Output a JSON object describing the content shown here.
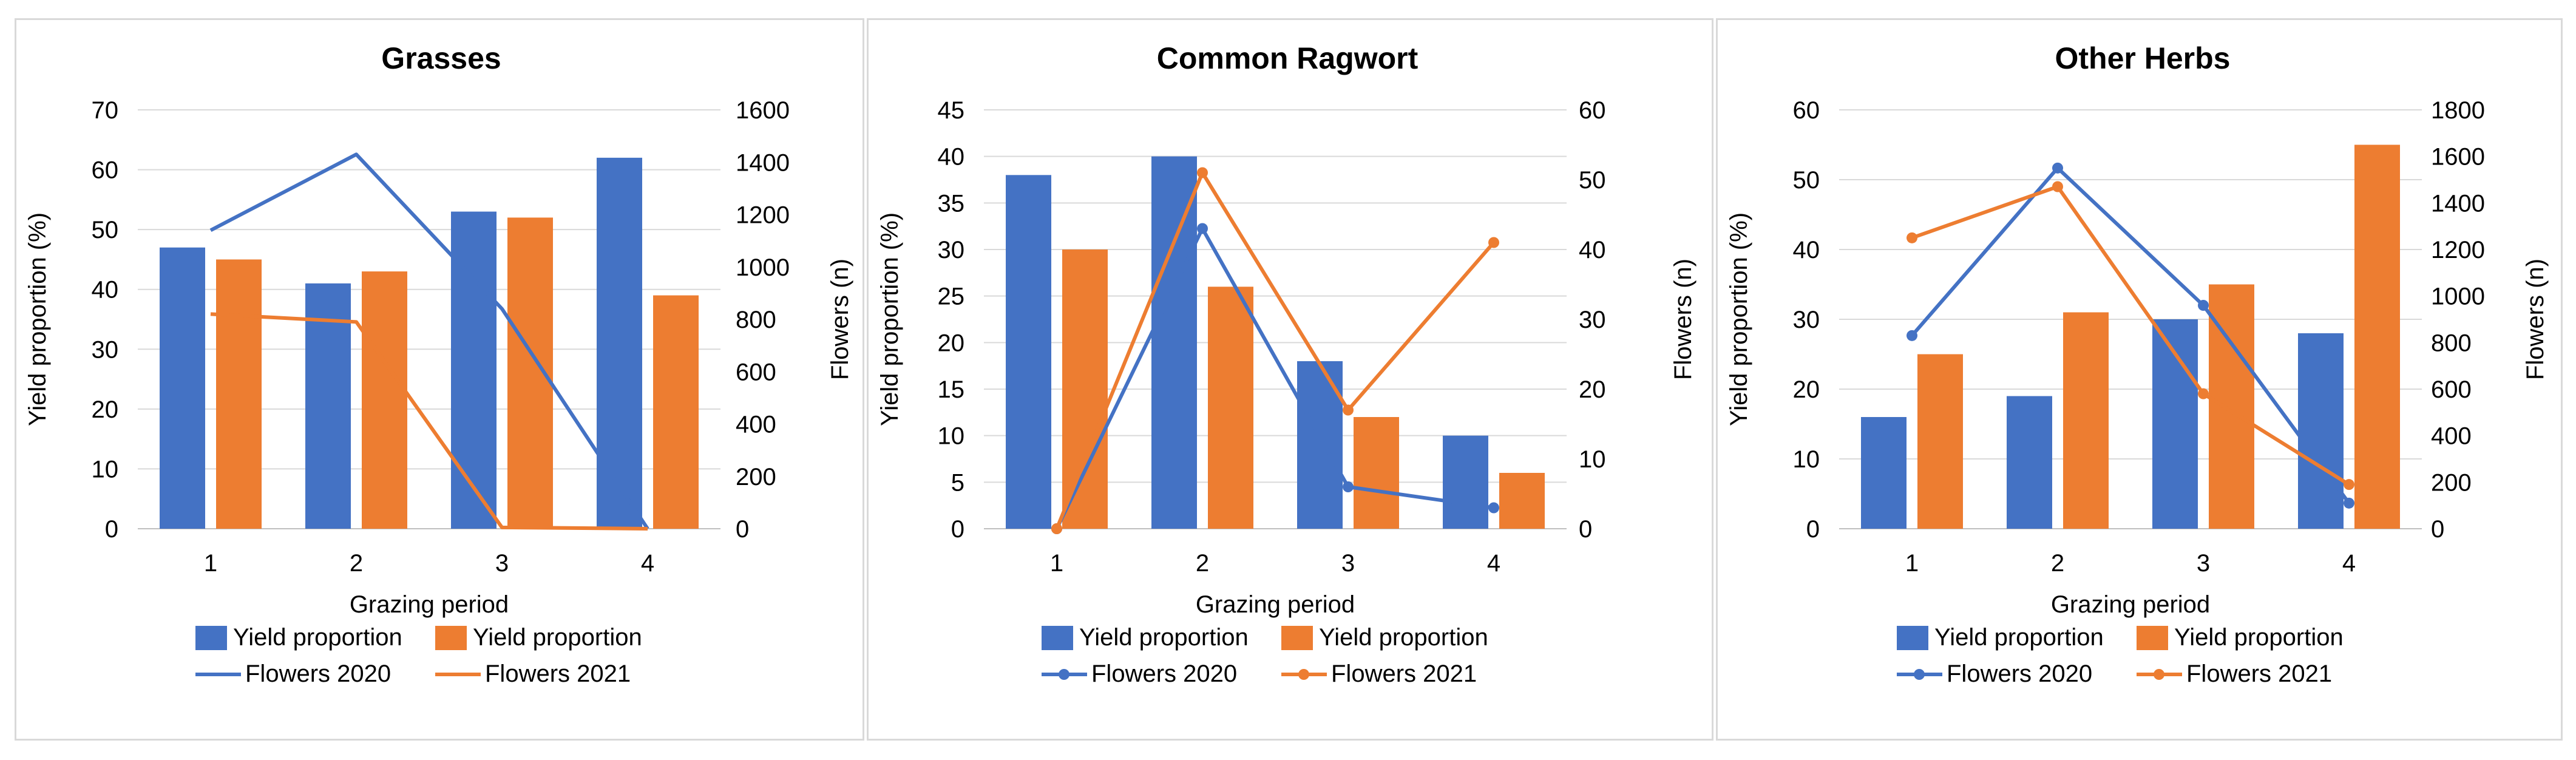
{
  "chart_data": [
    {
      "type": "bar+line",
      "title": "Grasses",
      "categories": [
        "1",
        "2",
        "3",
        "4"
      ],
      "xlabel": "Grazing period",
      "ylabel": "Yield proportion (%)",
      "ylim": [
        0,
        70
      ],
      "yticks": [
        "0",
        "10",
        "20",
        "30",
        "40",
        "50",
        "60",
        "70"
      ],
      "y2label": "Flowers (n)",
      "y2lim": [
        0,
        1600
      ],
      "y2ticks": [
        "0",
        "200",
        "400",
        "600",
        "800",
        "1000",
        "1200",
        "1400",
        "1600"
      ],
      "markers": false,
      "bar_series": [
        {
          "name": "Yield proportion",
          "color": "#4472c4",
          "values": [
            47,
            41,
            53,
            62
          ]
        },
        {
          "name": "Yield proportion",
          "color": "#ed7d31",
          "values": [
            45,
            43,
            52,
            39
          ]
        }
      ],
      "line_series": [
        {
          "name": "Flowers 2020",
          "color": "#4472c4",
          "values": [
            1140,
            1430,
            840,
            0
          ]
        },
        {
          "name": "Flowers 2021",
          "color": "#ed7d31",
          "values": [
            820,
            790,
            5,
            0
          ]
        }
      ]
    },
    {
      "type": "bar+line",
      "title": "Common Ragwort",
      "categories": [
        "1",
        "2",
        "3",
        "4"
      ],
      "xlabel": "Grazing period",
      "ylabel": "Yield proportion (%)",
      "ylim": [
        0,
        45
      ],
      "yticks": [
        "0",
        "5",
        "10",
        "15",
        "20",
        "25",
        "30",
        "35",
        "40",
        "45"
      ],
      "y2label": "Flowers (n)",
      "y2lim": [
        0,
        60
      ],
      "y2ticks": [
        "0",
        "10",
        "20",
        "30",
        "40",
        "50",
        "60"
      ],
      "markers": true,
      "bar_series": [
        {
          "name": "Yield proportion",
          "color": "#4472c4",
          "values": [
            38,
            40,
            18,
            10
          ]
        },
        {
          "name": "Yield proportion",
          "color": "#ed7d31",
          "values": [
            30,
            26,
            12,
            6
          ]
        }
      ],
      "line_series": [
        {
          "name": "Flowers 2020",
          "color": "#4472c4",
          "values": [
            0,
            43,
            6,
            3
          ]
        },
        {
          "name": "Flowers 2021",
          "color": "#ed7d31",
          "values": [
            0,
            51,
            17,
            41
          ]
        }
      ]
    },
    {
      "type": "bar+line",
      "title": "Other Herbs",
      "categories": [
        "1",
        "2",
        "3",
        "4"
      ],
      "xlabel": "Grazing period",
      "ylabel": "Yield proportion (%)",
      "ylim": [
        0,
        60
      ],
      "yticks": [
        "0",
        "10",
        "20",
        "30",
        "40",
        "50",
        "60"
      ],
      "y2label": "Flowers (n)",
      "y2lim": [
        0,
        1800
      ],
      "y2ticks": [
        "0",
        "200",
        "400",
        "600",
        "800",
        "1000",
        "1200",
        "1400",
        "1600",
        "1800"
      ],
      "markers": true,
      "bar_series": [
        {
          "name": "Yield proportion",
          "color": "#4472c4",
          "values": [
            16,
            19,
            30,
            28
          ]
        },
        {
          "name": "Yield proportion",
          "color": "#ed7d31",
          "values": [
            25,
            31,
            35,
            55
          ]
        }
      ],
      "line_series": [
        {
          "name": "Flowers 2020",
          "color": "#4472c4",
          "values": [
            830,
            1550,
            960,
            110
          ]
        },
        {
          "name": "Flowers 2021",
          "color": "#ed7d31",
          "values": [
            1250,
            1470,
            580,
            190
          ]
        }
      ]
    }
  ]
}
